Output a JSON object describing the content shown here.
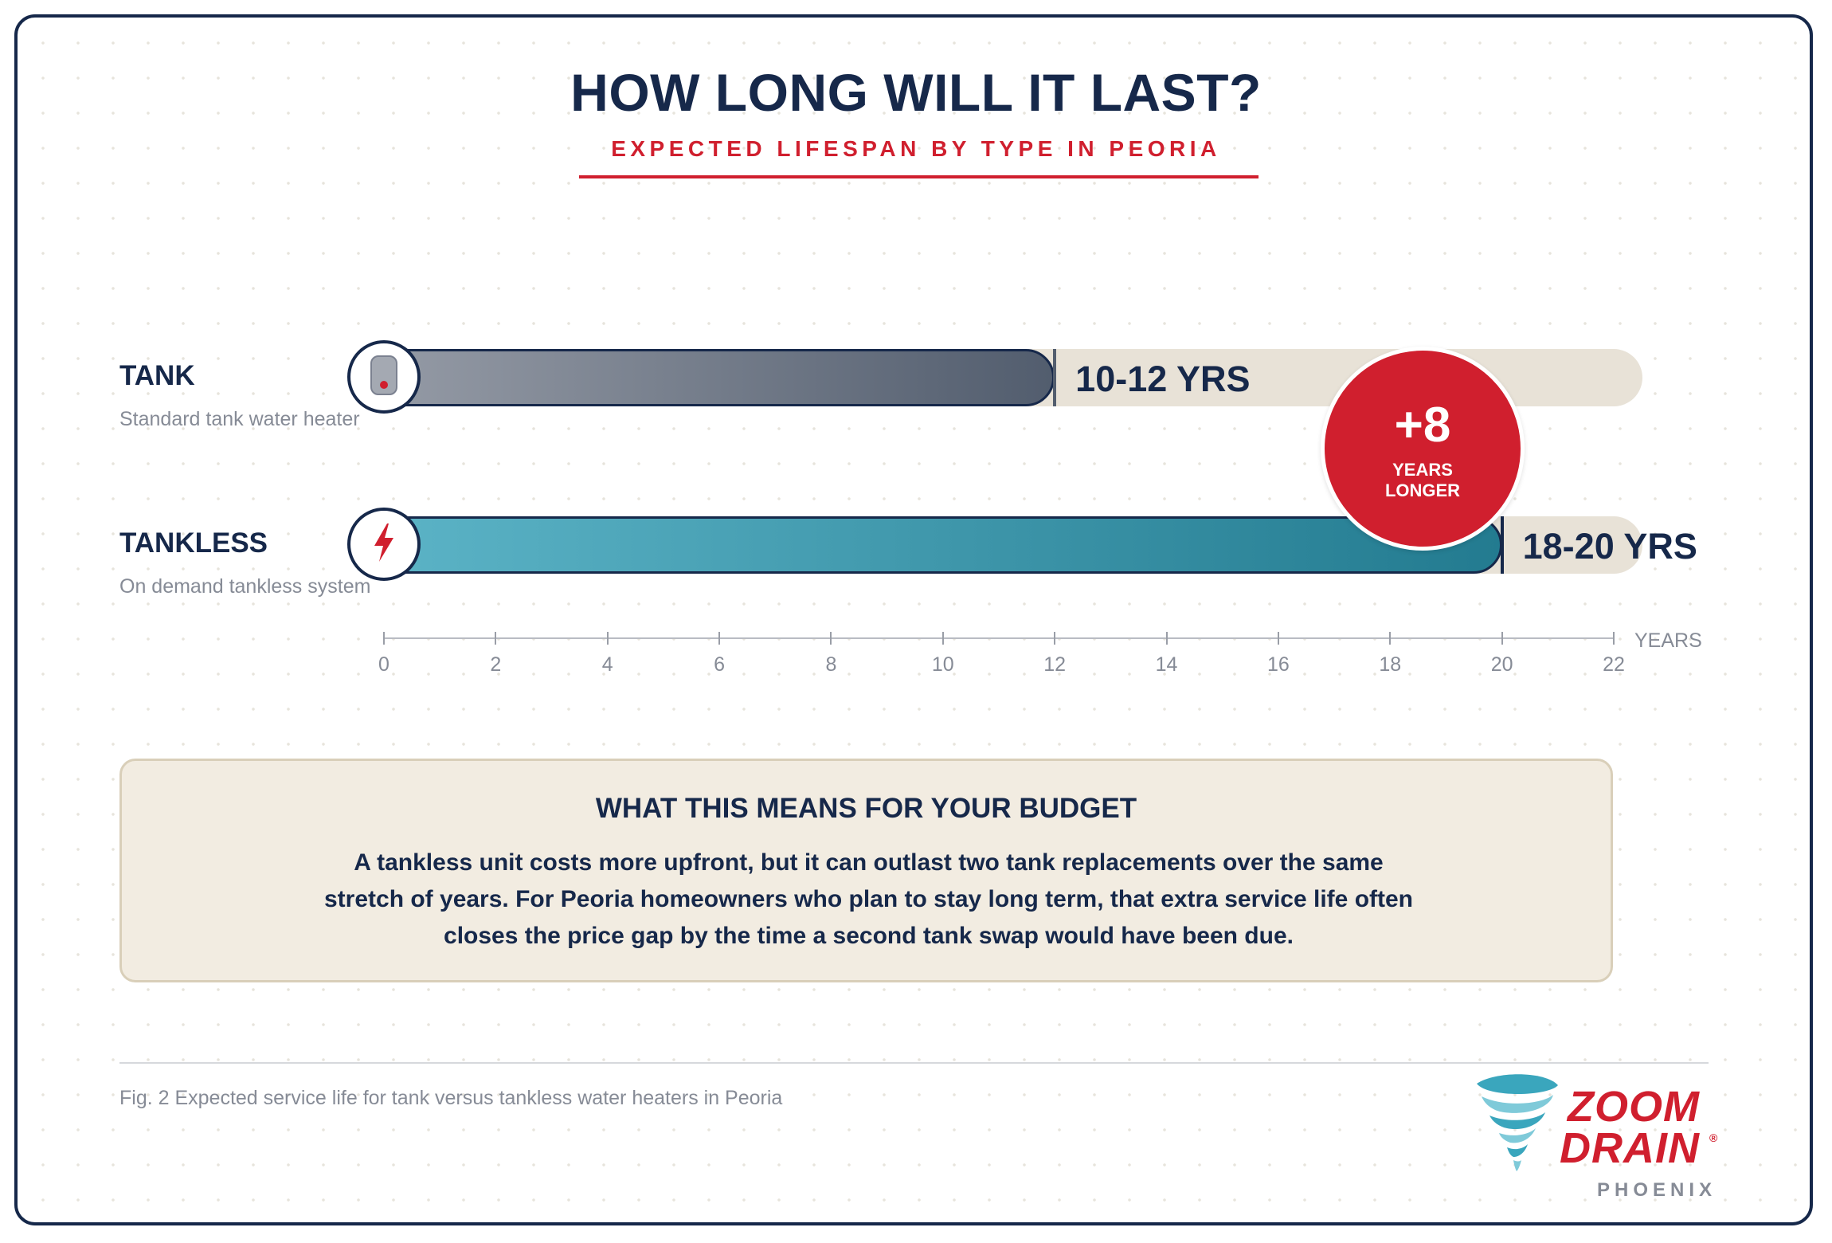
{
  "chart_data": {
    "type": "bar",
    "orientation": "horizontal",
    "title": "HOW LONG WILL IT LAST?",
    "subtitle": "EXPECTED LIFESPAN BY TYPE IN PEORIA",
    "xlabel": "YEARS",
    "xlim": [
      0,
      22
    ],
    "xticks": [
      0,
      2,
      4,
      6,
      8,
      10,
      12,
      14,
      16,
      18,
      20,
      22
    ],
    "grid": false,
    "categories": [
      "TANK",
      "TANKLESS"
    ],
    "bars": [
      {
        "label": "TANK",
        "sublabel": "Standard tank water heater",
        "range": [
          10,
          12
        ],
        "value": 12,
        "value_label": "10-12 YRS",
        "icon": "water-tank-icon",
        "color_start": "#949aa5",
        "color_end": "#525d6e"
      },
      {
        "label": "TANKLESS",
        "sublabel": "On demand tankless system",
        "range": [
          18,
          20
        ],
        "value": 20,
        "value_label": "18-20 YRS",
        "icon": "lightning-bolt-icon",
        "color_start": "#5bb3c6",
        "color_end": "#237b90"
      }
    ],
    "annotation": {
      "value": "+8",
      "line1": "YEARS",
      "line2": "LONGER",
      "color": "#d01f2e"
    }
  },
  "budget": {
    "heading": "WHAT THIS MEANS FOR YOUR BUDGET",
    "body": "A tankless unit costs more upfront, but it can outlast two tank replacements over the same stretch of years. For Peoria homeowners who plan to stay long term, that extra service life often closes the price gap by the time a second tank swap would have been due."
  },
  "caption": "Fig. 2 Expected service life for tank versus tankless water heaters in Peoria",
  "logo": {
    "line1": "ZOOM",
    "line2": "DRAIN",
    "reg": "®",
    "city": "PHOENIX"
  },
  "colors": {
    "navy": "#16284a",
    "red": "#d01f2e",
    "track": "#e8e2d7",
    "budget_bg": "#f2ece1",
    "muted": "#868b96"
  }
}
